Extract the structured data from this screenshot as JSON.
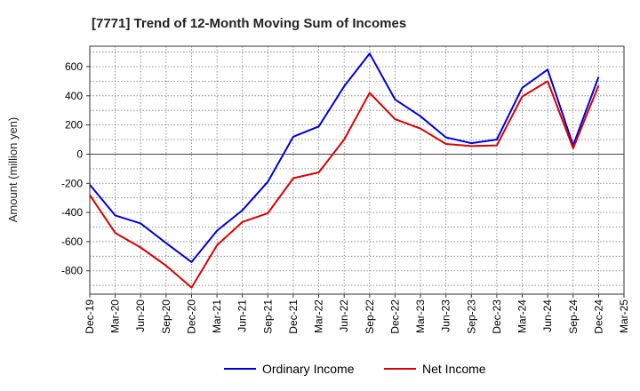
{
  "chart_data": {
    "type": "line",
    "title": "[7771]  Trend of 12-Month Moving Sum of Incomes",
    "xlabel": "",
    "ylabel": "Amount (million yen)",
    "ylim": [
      -960,
      740
    ],
    "yticks": [
      -800,
      -600,
      -400,
      -200,
      0,
      200,
      400,
      600
    ],
    "grid": true,
    "legend_position": "bottom",
    "categories": [
      "Dec-19",
      "Mar-20",
      "Jun-20",
      "Sep-20",
      "Dec-20",
      "Mar-21",
      "Jun-21",
      "Sep-21",
      "Dec-21",
      "Mar-22",
      "Jun-22",
      "Sep-22",
      "Dec-22",
      "Mar-23",
      "Jun-23",
      "Sep-23",
      "Dec-23",
      "Mar-24",
      "Jun-24",
      "Sep-24",
      "Dec-24",
      "Mar-25"
    ],
    "series": [
      {
        "name": "Ordinary Income",
        "color": "#0000dd",
        "values": [
          -210,
          -420,
          -475,
          -610,
          -740,
          -525,
          -385,
          -190,
          120,
          190,
          465,
          690,
          375,
          260,
          115,
          75,
          100,
          455,
          580,
          60,
          530,
          null
        ]
      },
      {
        "name": "Net Income",
        "color": "#dd0000",
        "values": [
          -280,
          -540,
          -640,
          -765,
          -915,
          -625,
          -465,
          -405,
          -165,
          -125,
          100,
          420,
          240,
          175,
          70,
          55,
          60,
          395,
          500,
          40,
          470,
          null
        ]
      }
    ]
  }
}
